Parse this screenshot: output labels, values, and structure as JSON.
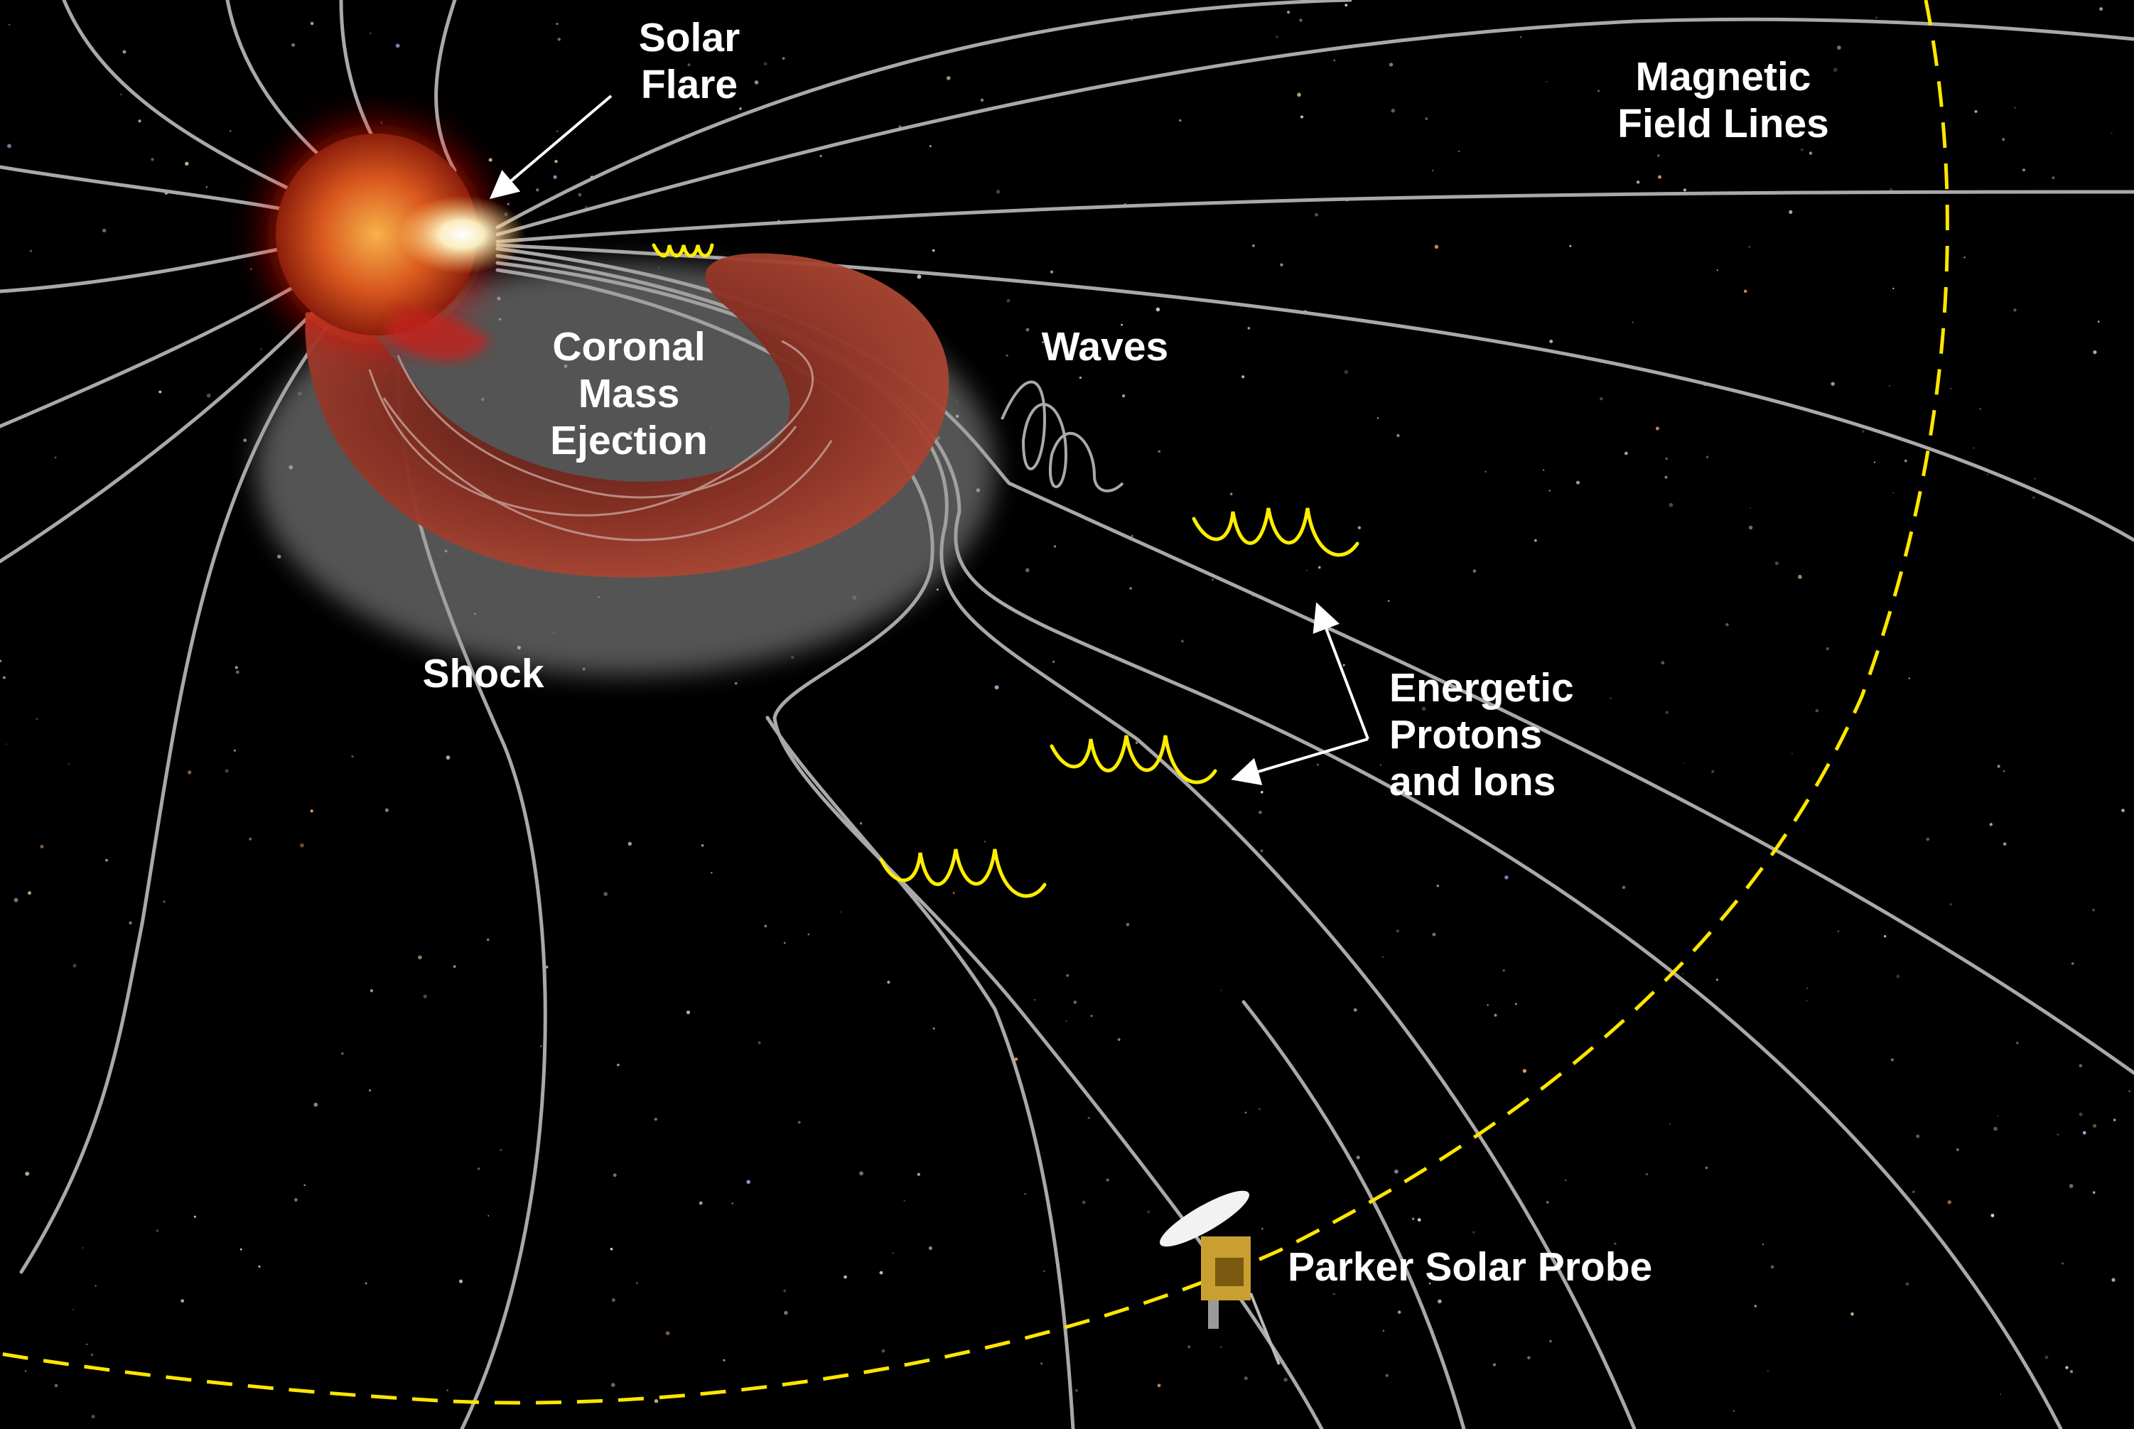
{
  "labels": {
    "solar_flare": [
      "Solar",
      "Flare"
    ],
    "magnetic_field_lines": [
      "Magnetic",
      "Field Lines"
    ],
    "coronal_mass_ejection": [
      "Coronal",
      "Mass",
      "Ejection"
    ],
    "waves": "Waves",
    "shock": "Shock",
    "energetic_particles": [
      "Energetic",
      "Protons",
      "and Ions"
    ],
    "parker_solar_probe": "Parker Solar Probe"
  },
  "colors": {
    "background": "#000000",
    "field_lines": "#a9a9a9",
    "particle_helix": "#ffee00",
    "orbit_dashed": "#ffe600",
    "sun": "#d9581e",
    "cme": "#8a2f22",
    "label_text": "#ffffff"
  },
  "icons": {
    "sun": "sun-icon",
    "spacecraft": "parker-solar-probe-icon"
  }
}
